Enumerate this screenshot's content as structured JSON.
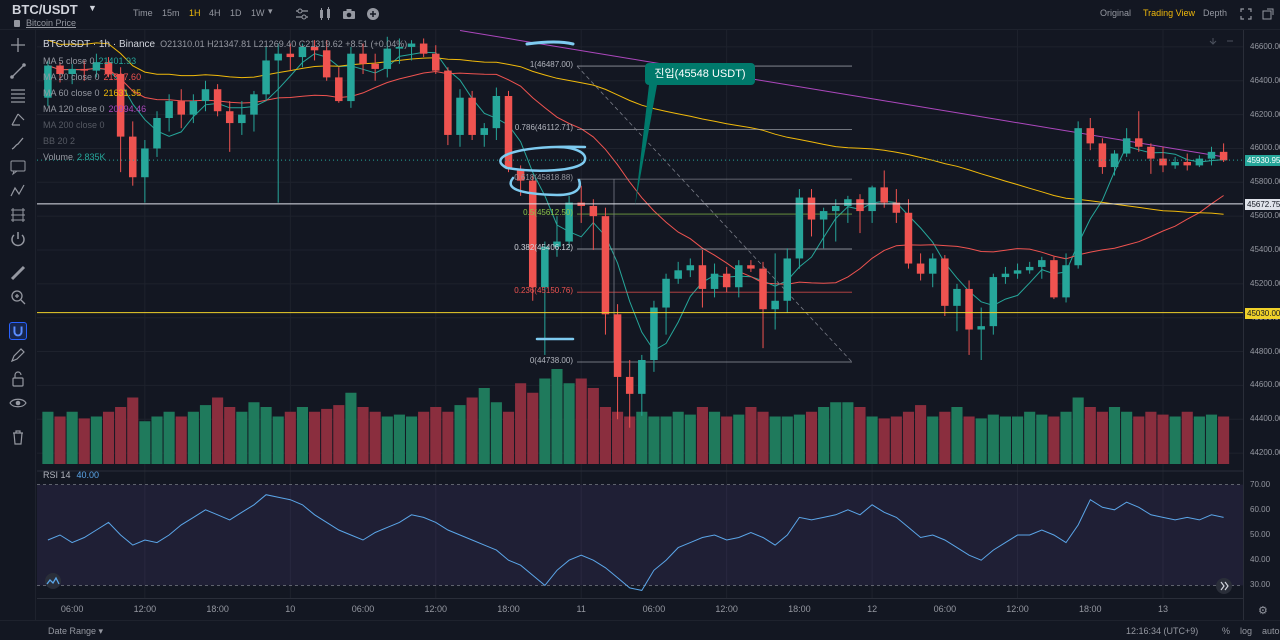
{
  "header": {
    "symbol": "BTC/USDT",
    "sub_label": "Bitcoin Price",
    "timeframes": [
      "Time",
      "15m",
      "1H",
      "4H",
      "1D",
      "1W"
    ],
    "active_timeframe": "1H",
    "views": [
      "Original",
      "Trading View",
      "Depth"
    ],
    "active_view": "Trading View"
  },
  "legend": {
    "main": "BTCUSDT · 1h · Binance",
    "ohlc": "O21310.01 H21347.81 L21269.40 C21319.62 +8.51 (+0.04%)",
    "ma": [
      {
        "label": "MA 5 close 0",
        "value": "21401.93",
        "color": "#26a69a"
      },
      {
        "label": "MA 20 close 0",
        "value": "21587.60",
        "color": "#ef5350"
      },
      {
        "label": "MA 60 close 0",
        "value": "21631.35",
        "color": "#f0b90b"
      },
      {
        "label": "MA 120 close 0",
        "value": "20994.46",
        "color": "#ab47bc"
      },
      {
        "label": "MA 200 close 0",
        "value": "",
        "color": "#ffffff"
      }
    ],
    "bb": "BB 20 2",
    "volume_label": "Volume",
    "volume_value": "2.835K"
  },
  "fib_levels": [
    {
      "label": "1(46487.00)",
      "price": 46487.0,
      "color": "#b2b5be"
    },
    {
      "label": "0.786(46112.71)",
      "price": 46112.71,
      "color": "#b2b5be"
    },
    {
      "label": "0.618(45818.88)",
      "price": 45818.88,
      "color": "#9598a1"
    },
    {
      "label": "0.5(45612.50)",
      "price": 45612.5,
      "color": "#8bc34a"
    },
    {
      "label": "0.382(45406.12)",
      "price": 45406.12,
      "color": "#d1d4dc"
    },
    {
      "label": "0.236(45150.76)",
      "price": 45150.76,
      "color": "#ef5350"
    },
    {
      "label": "0(44738.00)",
      "price": 44738.0,
      "color": "#b2b5be"
    }
  ],
  "callout": "진입(45548 USDT)",
  "price_axis": {
    "ticks": [
      "46600.00",
      "46400.00",
      "46200.00",
      "46000.00",
      "45800.00",
      "45600.00",
      "45400.00",
      "45200.00",
      "45000.00",
      "44800.00",
      "44600.00",
      "44400.00",
      "44200.00"
    ],
    "last_price": "45930.95",
    "white_line": "45672.75",
    "yellow_line": "45030.00"
  },
  "rsi": {
    "label": "RSI 14",
    "value": "40.00",
    "ticks": [
      "70.00",
      "60.00",
      "50.00",
      "40.00",
      "30.00"
    ]
  },
  "time_axis": [
    "06:00",
    "12:00",
    "18:00",
    "10",
    "06:00",
    "12:00",
    "18:00",
    "11",
    "06:00",
    "12:00",
    "18:00",
    "12",
    "06:00",
    "12:00",
    "18:00",
    "13"
  ],
  "footer": {
    "date_range": "Date Range",
    "clock": "12:16:34 (UTC+9)",
    "percent": "%",
    "log": "log",
    "auto": "auto"
  },
  "chart_data": {
    "type": "candlestick",
    "symbol": "BTCUSDT",
    "interval": "1h",
    "exchange": "Binance",
    "ylim": [
      44100,
      46700
    ],
    "candles": [
      [
        46300,
        46520,
        46250,
        46490
      ],
      [
        46490,
        46510,
        46390,
        46440
      ],
      [
        46440,
        46500,
        46380,
        46470
      ],
      [
        46470,
        46520,
        46400,
        46460
      ],
      [
        46460,
        46560,
        46420,
        46510
      ],
      [
        46510,
        46540,
        46420,
        46440
      ],
      [
        46440,
        46480,
        45860,
        46070
      ],
      [
        46070,
        46160,
        45780,
        45830
      ],
      [
        45830,
        46050,
        45680,
        46000
      ],
      [
        46000,
        46220,
        45950,
        46180
      ],
      [
        46180,
        46320,
        46100,
        46280
      ],
      [
        46280,
        46350,
        46120,
        46200
      ],
      [
        46200,
        46320,
        46150,
        46280
      ],
      [
        46280,
        46400,
        46220,
        46350
      ],
      [
        46350,
        46380,
        46190,
        46220
      ],
      [
        46220,
        46280,
        45980,
        46150
      ],
      [
        46150,
        46280,
        46080,
        46200
      ],
      [
        46200,
        46340,
        46100,
        46320
      ],
      [
        46320,
        46600,
        46280,
        46520
      ],
      [
        46520,
        46620,
        45680,
        46560
      ],
      [
        46560,
        46620,
        46460,
        46540
      ],
      [
        46540,
        46620,
        46480,
        46600
      ],
      [
        46600,
        46640,
        46520,
        46580
      ],
      [
        46580,
        46640,
        46400,
        46420
      ],
      [
        46420,
        46480,
        46270,
        46280
      ],
      [
        46280,
        46600,
        46240,
        46560
      ],
      [
        46560,
        46620,
        46440,
        46500
      ],
      [
        46500,
        46560,
        46400,
        46470
      ],
      [
        46470,
        46660,
        46420,
        46590
      ],
      [
        46590,
        46650,
        46500,
        46600
      ],
      [
        46600,
        46640,
        46520,
        46620
      ],
      [
        46620,
        46650,
        46540,
        46560
      ],
      [
        46560,
        46610,
        46440,
        46460
      ],
      [
        46460,
        46480,
        46020,
        46080
      ],
      [
        46080,
        46350,
        46010,
        46300
      ],
      [
        46300,
        46340,
        46050,
        46080
      ],
      [
        46080,
        46150,
        46010,
        46120
      ],
      [
        46120,
        46360,
        46050,
        46310
      ],
      [
        46310,
        46340,
        45860,
        45880
      ],
      [
        45880,
        45900,
        45720,
        45810
      ],
      [
        45810,
        45840,
        45100,
        45180
      ],
      [
        45180,
        45450,
        44780,
        45420
      ],
      [
        45420,
        45600,
        45360,
        45450
      ],
      [
        45450,
        45720,
        45410,
        45680
      ],
      [
        45680,
        45780,
        45560,
        45660
      ],
      [
        45660,
        45700,
        45400,
        45600
      ],
      [
        45600,
        45650,
        44900,
        45020
      ],
      [
        45020,
        45080,
        44400,
        44650
      ],
      [
        44650,
        44750,
        44350,
        44550
      ],
      [
        44550,
        44780,
        44420,
        44750
      ],
      [
        44750,
        45100,
        44680,
        45060
      ],
      [
        45060,
        45260,
        44900,
        45230
      ],
      [
        45230,
        45330,
        45200,
        45280
      ],
      [
        45280,
        45350,
        45240,
        45310
      ],
      [
        45310,
        45400,
        45060,
        45170
      ],
      [
        45170,
        45320,
        45120,
        45260
      ],
      [
        45260,
        45300,
        45150,
        45180
      ],
      [
        45180,
        45340,
        45120,
        45310
      ],
      [
        45310,
        45340,
        45270,
        45290
      ],
      [
        45290,
        45330,
        44820,
        45050
      ],
      [
        45050,
        45380,
        44930,
        45100
      ],
      [
        45100,
        45410,
        45030,
        45350
      ],
      [
        45350,
        45760,
        45290,
        45710
      ],
      [
        45710,
        45760,
        45480,
        45580
      ],
      [
        45580,
        45650,
        45410,
        45630
      ],
      [
        45630,
        45700,
        45450,
        45660
      ],
      [
        45660,
        45720,
        45560,
        45700
      ],
      [
        45700,
        45730,
        45500,
        45630
      ],
      [
        45630,
        45780,
        45560,
        45770
      ],
      [
        45770,
        45870,
        45650,
        45680
      ],
      [
        45680,
        45760,
        45560,
        45620
      ],
      [
        45620,
        45700,
        45290,
        45320
      ],
      [
        45320,
        45380,
        45220,
        45260
      ],
      [
        45260,
        45380,
        45180,
        45350
      ],
      [
        45350,
        45370,
        45010,
        45070
      ],
      [
        45070,
        45200,
        44920,
        45170
      ],
      [
        45170,
        45220,
        44780,
        44930
      ],
      [
        44930,
        45060,
        44750,
        44950
      ],
      [
        44950,
        45260,
        44900,
        45240
      ],
      [
        45240,
        45300,
        45200,
        45260
      ],
      [
        45260,
        45320,
        45230,
        45280
      ],
      [
        45280,
        45330,
        45260,
        45300
      ],
      [
        45300,
        45360,
        45230,
        45340
      ],
      [
        45340,
        45360,
        45110,
        45120
      ],
      [
        45120,
        45380,
        45090,
        45310
      ],
      [
        45310,
        46160,
        45290,
        46120
      ],
      [
        46120,
        46180,
        45990,
        46030
      ],
      [
        46030,
        46060,
        45850,
        45890
      ],
      [
        45890,
        45990,
        45840,
        45970
      ],
      [
        45970,
        46120,
        45950,
        46060
      ],
      [
        46060,
        46220,
        45980,
        46010
      ],
      [
        46010,
        46030,
        45850,
        45940
      ],
      [
        45940,
        46010,
        45860,
        45900
      ],
      [
        45900,
        45950,
        45880,
        45920
      ],
      [
        45920,
        45970,
        45870,
        45900
      ],
      [
        45900,
        45960,
        45890,
        45940
      ],
      [
        45940,
        46010,
        45900,
        45980
      ],
      [
        45980,
        46030,
        45920,
        45930
      ]
    ],
    "volume": [
      0.55,
      0.5,
      0.55,
      0.48,
      0.5,
      0.55,
      0.6,
      0.7,
      0.45,
      0.5,
      0.55,
      0.5,
      0.55,
      0.62,
      0.7,
      0.6,
      0.55,
      0.65,
      0.6,
      0.5,
      0.55,
      0.6,
      0.55,
      0.58,
      0.62,
      0.75,
      0.6,
      0.55,
      0.5,
      0.52,
      0.5,
      0.55,
      0.6,
      0.55,
      0.62,
      0.7,
      0.8,
      0.65,
      0.55,
      0.85,
      0.75,
      0.9,
      1.0,
      0.85,
      0.9,
      0.8,
      0.6,
      0.55,
      0.5,
      0.55,
      0.5,
      0.5,
      0.55,
      0.52,
      0.6,
      0.55,
      0.5,
      0.52,
      0.6,
      0.55,
      0.5,
      0.5,
      0.52,
      0.55,
      0.6,
      0.65,
      0.65,
      0.6,
      0.5,
      0.48,
      0.5,
      0.55,
      0.62,
      0.5,
      0.55,
      0.6,
      0.5,
      0.48,
      0.52,
      0.5,
      0.5,
      0.55,
      0.52,
      0.5,
      0.55,
      0.7,
      0.6,
      0.55,
      0.6,
      0.55,
      0.5,
      0.55,
      0.52,
      0.5,
      0.55,
      0.5,
      0.52,
      0.5
    ],
    "rsi_values": [
      48,
      50,
      47,
      49,
      52,
      55,
      50,
      46,
      48,
      47,
      50,
      54,
      57,
      60,
      58,
      56,
      59,
      62,
      66,
      65,
      64,
      62,
      58,
      55,
      52,
      50,
      48,
      51,
      53,
      55,
      58,
      57,
      55,
      52,
      50,
      48,
      46,
      44,
      40,
      38,
      34,
      30,
      36,
      40,
      42,
      40,
      37,
      33,
      29,
      28,
      36,
      40,
      45,
      47,
      49,
      50,
      48,
      49,
      51,
      49,
      46,
      50,
      57,
      56,
      57,
      58,
      60,
      58,
      62,
      59,
      57,
      53,
      49,
      50,
      48,
      45,
      42,
      40,
      44,
      47,
      50,
      50,
      52,
      50,
      47,
      54,
      64,
      61,
      60,
      63,
      61,
      58,
      57,
      56,
      57,
      56,
      58,
      57
    ],
    "ma_lines": [
      "MA 5",
      "MA 20",
      "MA 60",
      "MA 120",
      "MA 200"
    ]
  }
}
